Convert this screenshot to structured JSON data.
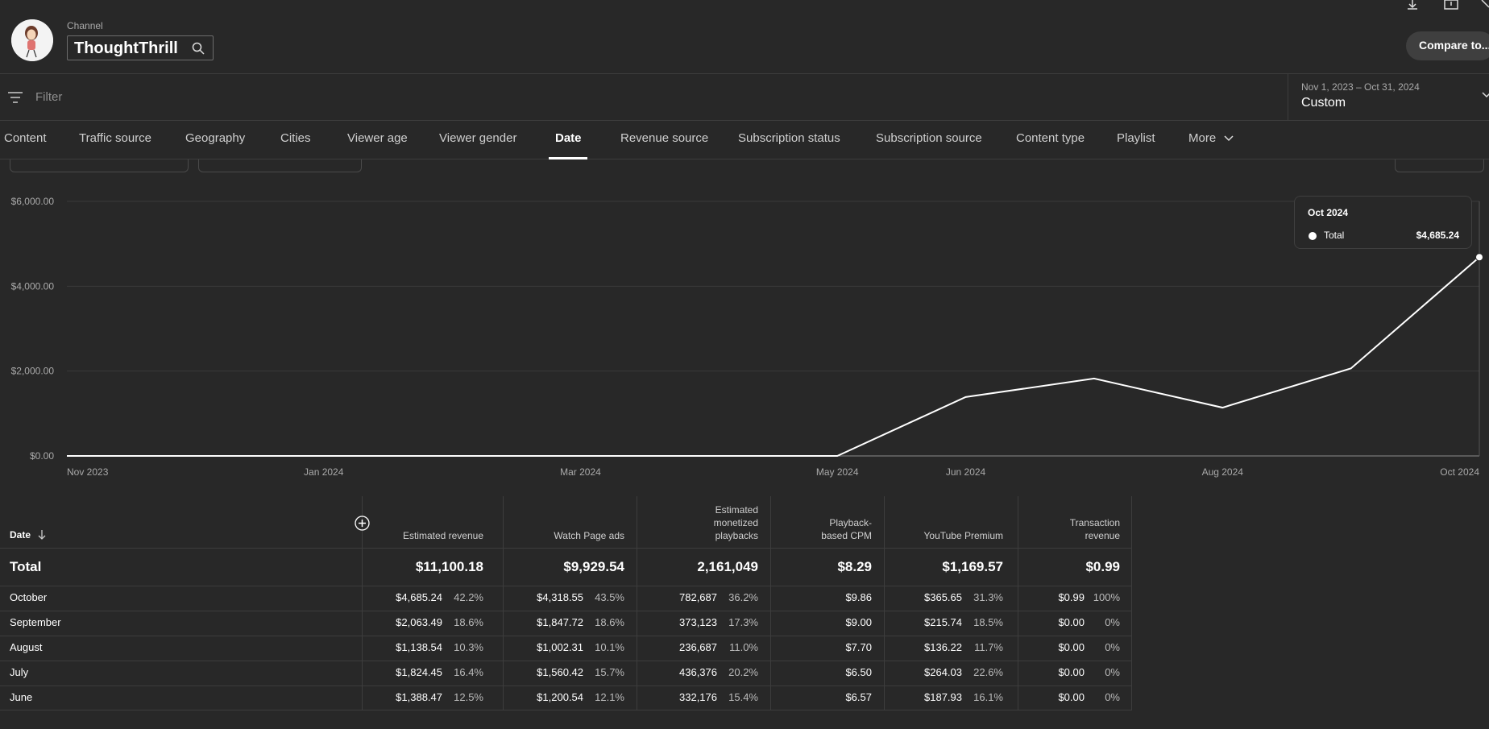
{
  "header": {
    "channel_label": "Channel",
    "channel_name": "ThoughtThrill",
    "compare_label": "Compare to...",
    "icons": [
      "download-icon",
      "feedback-icon",
      "close-icon",
      "search-icon"
    ]
  },
  "filter": {
    "placeholder": "Filter",
    "icon": "filter-icon"
  },
  "date_range": {
    "range": "Nov 1, 2023 – Oct 31, 2024",
    "label": "Custom"
  },
  "tabs": [
    {
      "label": "Content"
    },
    {
      "label": "Traffic source"
    },
    {
      "label": "Geography"
    },
    {
      "label": "Cities"
    },
    {
      "label": "Viewer age"
    },
    {
      "label": "Viewer gender"
    },
    {
      "label": "Date"
    },
    {
      "label": "Revenue source"
    },
    {
      "label": "Subscription status"
    },
    {
      "label": "Subscription source"
    },
    {
      "label": "Content type"
    },
    {
      "label": "Playlist"
    },
    {
      "label": "More"
    }
  ],
  "active_tab": "Date",
  "chart_data": {
    "type": "line",
    "x": [
      "Nov 2023",
      "Dec 2023",
      "Jan 2024",
      "Feb 2024",
      "Mar 2024",
      "Apr 2024",
      "May 2024",
      "Jun 2024",
      "Jul 2024",
      "Aug 2024",
      "Sep 2024",
      "Oct 2024"
    ],
    "x_tick_labels": [
      "Nov 2023",
      "Jan 2024",
      "Mar 2024",
      "May 2024",
      "Jun 2024",
      "Aug 2024",
      "Oct 2024"
    ],
    "series": [
      {
        "values": [
          0,
          0,
          0,
          0,
          0,
          0,
          0,
          1388.47,
          1824.45,
          1138.54,
          2063.49,
          4685.24
        ]
      }
    ],
    "y_tick_labels": [
      "$6,000.00",
      "$4,000.00",
      "$2,000.00",
      "$0.00"
    ],
    "y_ticks": [
      6000,
      4000,
      2000,
      0
    ],
    "ylim": [
      0,
      6000
    ],
    "grid": true,
    "line_color": "#ffffff"
  },
  "tooltip": {
    "title": "Oct 2024",
    "series": "Total",
    "value": "$4,685.24"
  },
  "table": {
    "date_header": "Date",
    "columns": [
      {
        "label": "Estimated revenue",
        "total": "$11,100.18"
      },
      {
        "label": "Watch Page ads",
        "total": "$9,929.54"
      },
      {
        "label": "Estimated monetized playbacks",
        "total": "2,161,049"
      },
      {
        "label": "Playback-based CPM",
        "total": "$8.29"
      },
      {
        "label": "YouTube Premium",
        "total": "$1,169.57"
      },
      {
        "label": "Transaction revenue",
        "total": "$0.99"
      }
    ],
    "header_lines": [
      [
        "Estimated revenue"
      ],
      [
        "Watch Page ads"
      ],
      [
        "Estimated",
        "monetized",
        "playbacks"
      ],
      [
        "Playback-",
        "based CPM"
      ],
      [
        "YouTube Premium"
      ],
      [
        "Transaction",
        "revenue"
      ]
    ],
    "total_label": "Total",
    "rows": [
      {
        "date": "October",
        "cells": [
          [
            "$4,685.24",
            "42.2%"
          ],
          [
            "$4,318.55",
            "43.5%"
          ],
          [
            "782,687",
            "36.2%"
          ],
          [
            "$9.86",
            ""
          ],
          [
            "$365.65",
            "31.3%"
          ],
          [
            "$0.99",
            "100%"
          ]
        ]
      },
      {
        "date": "September",
        "cells": [
          [
            "$2,063.49",
            "18.6%"
          ],
          [
            "$1,847.72",
            "18.6%"
          ],
          [
            "373,123",
            "17.3%"
          ],
          [
            "$9.00",
            ""
          ],
          [
            "$215.74",
            "18.5%"
          ],
          [
            "$0.00",
            "0%"
          ]
        ]
      },
      {
        "date": "August",
        "cells": [
          [
            "$1,138.54",
            "10.3%"
          ],
          [
            "$1,002.31",
            "10.1%"
          ],
          [
            "236,687",
            "11.0%"
          ],
          [
            "$7.70",
            ""
          ],
          [
            "$136.22",
            "11.7%"
          ],
          [
            "$0.00",
            "0%"
          ]
        ]
      },
      {
        "date": "July",
        "cells": [
          [
            "$1,824.45",
            "16.4%"
          ],
          [
            "$1,560.42",
            "15.7%"
          ],
          [
            "436,376",
            "20.2%"
          ],
          [
            "$6.50",
            ""
          ],
          [
            "$264.03",
            "22.6%"
          ],
          [
            "$0.00",
            "0%"
          ]
        ]
      },
      {
        "date": "June",
        "cells": [
          [
            "$1,388.47",
            "12.5%"
          ],
          [
            "$1,200.54",
            "12.1%"
          ],
          [
            "332,176",
            "15.4%"
          ],
          [
            "$6.57",
            ""
          ],
          [
            "$187.93",
            "16.1%"
          ],
          [
            "$0.00",
            "0%"
          ]
        ]
      }
    ]
  }
}
